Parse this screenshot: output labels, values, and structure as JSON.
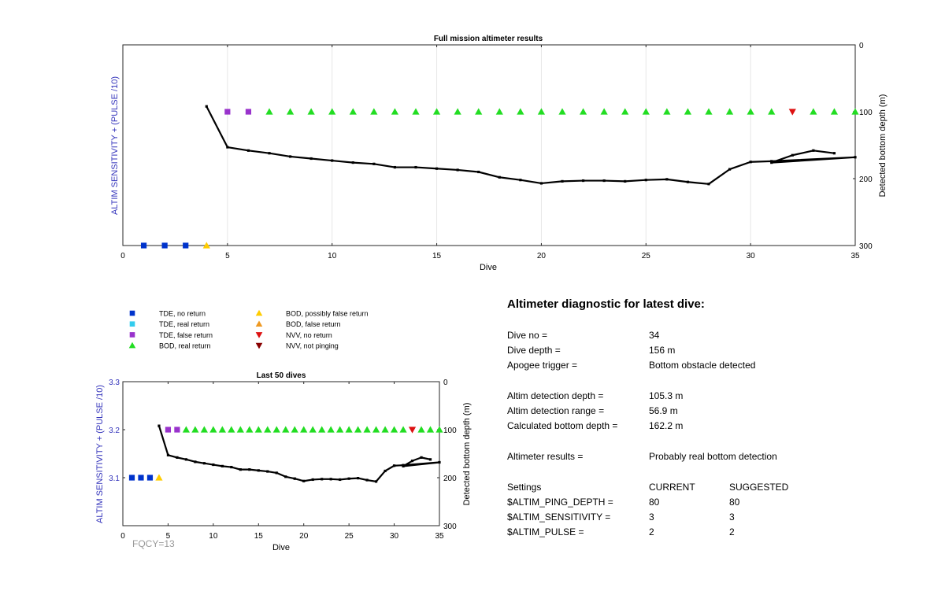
{
  "chart_data": [
    {
      "type": "scatter",
      "title": "Full mission altimeter results",
      "xlabel": "Dive",
      "ylabel": "ALTIM SENSITIVITY + (PULSE /10)",
      "y2label": "Detected bottom depth (m)",
      "xlim": [
        0,
        35
      ],
      "xticks": [
        "0",
        "5",
        "10",
        "15",
        "20",
        "25",
        "30",
        "35"
      ],
      "y2lim": [
        0,
        300
      ],
      "y2ticks": [
        "0",
        "100",
        "200",
        "300"
      ],
      "grid": "x",
      "series": [
        {
          "marker": "square",
          "color": "#0033cc",
          "x": [
            1,
            2,
            3
          ],
          "y": [
            3.0,
            3.0,
            3.0
          ]
        },
        {
          "marker": "triangle-up",
          "color": "#ffcc00",
          "x": [
            4
          ],
          "y": [
            3.0
          ]
        },
        {
          "marker": "square",
          "color": "#9933cc",
          "x": [
            5,
            6
          ],
          "y": [
            3.2,
            3.2
          ]
        },
        {
          "marker": "triangle-up",
          "color": "#22dd22",
          "x": [
            7,
            8,
            9,
            10,
            11,
            12,
            13,
            14,
            15,
            16,
            17,
            18,
            19,
            20,
            21,
            22,
            23,
            24,
            25,
            26,
            27,
            28,
            29,
            30,
            31,
            33,
            34,
            35
          ],
          "y": [
            3.2,
            3.2,
            3.2,
            3.2,
            3.2,
            3.2,
            3.2,
            3.2,
            3.2,
            3.2,
            3.2,
            3.2,
            3.2,
            3.2,
            3.2,
            3.2,
            3.2,
            3.2,
            3.2,
            3.2,
            3.2,
            3.2,
            3.2,
            3.2,
            3.2,
            3.2,
            3.2,
            3.2
          ]
        },
        {
          "marker": "triangle-down",
          "color": "#dd1111",
          "x": [
            32
          ],
          "y": [
            3.2
          ]
        }
      ],
      "depth_line": {
        "x": [
          4,
          5,
          6,
          7,
          8,
          9,
          10,
          11,
          12,
          13,
          14,
          15,
          16,
          17,
          18,
          19,
          20,
          21,
          22,
          23,
          24,
          25,
          26,
          27,
          28,
          29,
          30,
          31,
          35,
          31,
          32,
          33,
          34
        ],
        "y": [
          92,
          153,
          158,
          162,
          167,
          170,
          173,
          176,
          178,
          183,
          183,
          185,
          187,
          190,
          198,
          202,
          207,
          204,
          203,
          203,
          204,
          202,
          201,
          205,
          208,
          186,
          175,
          174,
          168,
          176,
          165,
          158,
          162
        ]
      }
    },
    {
      "type": "scatter",
      "title": "Last 50 dives",
      "xlabel": "Dive",
      "ylabel": "ALTIM SENSITIVITY + (PULSE /10)",
      "y2label": "Detected bottom depth (m)",
      "xlim": [
        0,
        35
      ],
      "xticks": [
        "0",
        "5",
        "10",
        "15",
        "20",
        "25",
        "30",
        "35"
      ],
      "ylim": [
        3.0,
        3.3
      ],
      "yticks": [
        "3.1",
        "3.2",
        "3.3"
      ],
      "y2lim": [
        0,
        300
      ],
      "y2ticks": [
        "0",
        "100",
        "200",
        "300"
      ],
      "annotation": "FQCY=13",
      "series": [
        {
          "marker": "square",
          "color": "#0033cc",
          "x": [
            1,
            2,
            3
          ],
          "y": [
            3.1,
            3.1,
            3.1
          ]
        },
        {
          "marker": "triangle-up",
          "color": "#ffcc00",
          "x": [
            4
          ],
          "y": [
            3.1
          ]
        },
        {
          "marker": "square",
          "color": "#9933cc",
          "x": [
            5,
            6
          ],
          "y": [
            3.2,
            3.2
          ]
        },
        {
          "marker": "triangle-up",
          "color": "#22dd22",
          "x": [
            7,
            8,
            9,
            10,
            11,
            12,
            13,
            14,
            15,
            16,
            17,
            18,
            19,
            20,
            21,
            22,
            23,
            24,
            25,
            26,
            27,
            28,
            29,
            30,
            31,
            33,
            34,
            35
          ],
          "y": [
            3.2,
            3.2,
            3.2,
            3.2,
            3.2,
            3.2,
            3.2,
            3.2,
            3.2,
            3.2,
            3.2,
            3.2,
            3.2,
            3.2,
            3.2,
            3.2,
            3.2,
            3.2,
            3.2,
            3.2,
            3.2,
            3.2,
            3.2,
            3.2,
            3.2,
            3.2,
            3.2,
            3.2
          ]
        },
        {
          "marker": "triangle-down",
          "color": "#dd1111",
          "x": [
            32
          ],
          "y": [
            3.2
          ]
        }
      ],
      "depth_line": {
        "x": [
          4,
          5,
          6,
          7,
          8,
          9,
          10,
          11,
          12,
          13,
          14,
          15,
          16,
          17,
          18,
          19,
          20,
          21,
          22,
          23,
          24,
          25,
          26,
          27,
          28,
          29,
          30,
          31,
          35,
          31,
          32,
          33,
          34
        ],
        "y": [
          92,
          153,
          158,
          162,
          167,
          170,
          173,
          176,
          178,
          183,
          183,
          185,
          187,
          190,
          198,
          202,
          207,
          204,
          203,
          203,
          204,
          202,
          201,
          205,
          208,
          186,
          175,
          174,
          168,
          176,
          165,
          158,
          162
        ]
      }
    }
  ],
  "legend": {
    "items": [
      {
        "label": "TDE, no return",
        "marker": "square",
        "color": "#0033cc"
      },
      {
        "label": "TDE, real return",
        "marker": "square",
        "color": "#33ccee"
      },
      {
        "label": "TDE, false return",
        "marker": "square",
        "color": "#9933cc"
      },
      {
        "label": "BOD, real return",
        "marker": "triangle-up",
        "color": "#22dd22"
      },
      {
        "label": "BOD, possibly false return",
        "marker": "triangle-up",
        "color": "#ffcc00"
      },
      {
        "label": "BOD, false return",
        "marker": "triangle-up",
        "color": "#ee9922"
      },
      {
        "label": "NVV, no return",
        "marker": "triangle-down",
        "color": "#dd1111"
      },
      {
        "label": "NVV, not pinging",
        "marker": "triangle-down",
        "color": "#880000"
      }
    ]
  },
  "diagnostic": {
    "title": "Altimeter diagnostic for latest dive:",
    "dive_no_label": "Dive no =",
    "dive_no": "34",
    "dive_depth_label": "Dive depth =",
    "dive_depth": "156 m",
    "apogee_label": "Apogee trigger =",
    "apogee": "Bottom obstacle detected",
    "det_depth_label": "Altim detection depth =",
    "det_depth": "105.3 m",
    "det_range_label": "Altim detection range =",
    "det_range": "56.9 m",
    "calc_depth_label": "Calculated bottom depth =",
    "calc_depth": "162.2 m",
    "results_label": "Altimeter results =",
    "results": "Probably real bottom detection",
    "settings_label": "Settings",
    "current_label": "CURRENT",
    "suggested_label": "SUGGESTED",
    "settings": [
      {
        "name": "$ALTIM_PING_DEPTH =",
        "current": "80",
        "suggested": "80"
      },
      {
        "name": "$ALTIM_SENSITIVITY =",
        "current": "3",
        "suggested": "3"
      },
      {
        "name": "$ALTIM_PULSE =",
        "current": "2",
        "suggested": "2"
      }
    ]
  },
  "colors": {
    "axis_label_blue": "#3333bb",
    "grid": "#e6e6e6",
    "annotation_gray": "#999999"
  }
}
